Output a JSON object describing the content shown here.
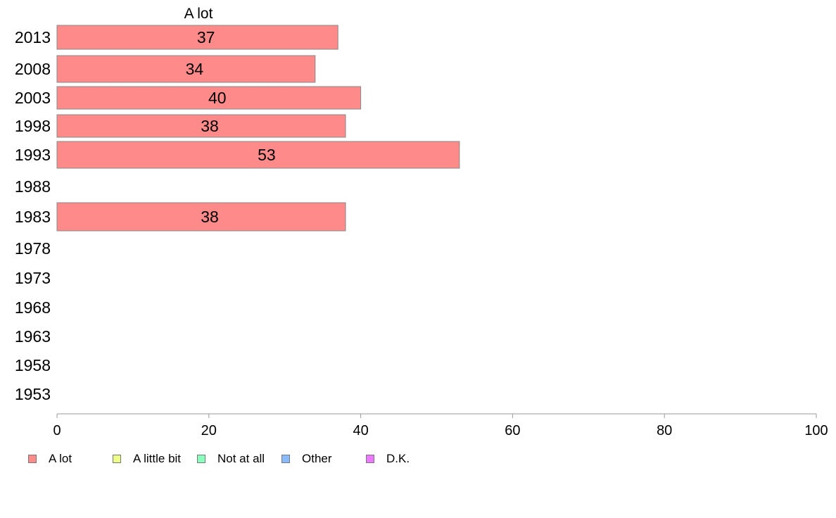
{
  "chart_data": {
    "type": "bar",
    "orientation": "horizontal",
    "categories": [
      "2013",
      "2008",
      "2003",
      "1998",
      "1993",
      "1988",
      "1983",
      "1978",
      "1973",
      "1968",
      "1963",
      "1958",
      "1953"
    ],
    "series_header": "A lot",
    "series": [
      {
        "name": "A lot",
        "color": "#ff8a8a",
        "values": [
          37,
          34,
          40,
          38,
          53,
          null,
          38,
          null,
          null,
          null,
          null,
          null,
          null
        ],
        "labels": [
          "37",
          "34",
          "40",
          "38",
          "53",
          "",
          "38",
          "",
          "",
          "",
          "",
          "",
          ""
        ]
      }
    ],
    "xlim": [
      0,
      100
    ],
    "xticks": [
      "0",
      "20",
      "40",
      "60",
      "80",
      "100"
    ],
    "grid": false,
    "legend_position": "bottom",
    "legend": [
      {
        "label": "A lot",
        "color": "#ff8a8a"
      },
      {
        "label": "A little bit",
        "color": "#eeff88"
      },
      {
        "label": "Not at all",
        "color": "#88ffbb"
      },
      {
        "label": "Other",
        "color": "#88bbff"
      },
      {
        "label": "D.K.",
        "color": "#ee77ff"
      }
    ]
  }
}
